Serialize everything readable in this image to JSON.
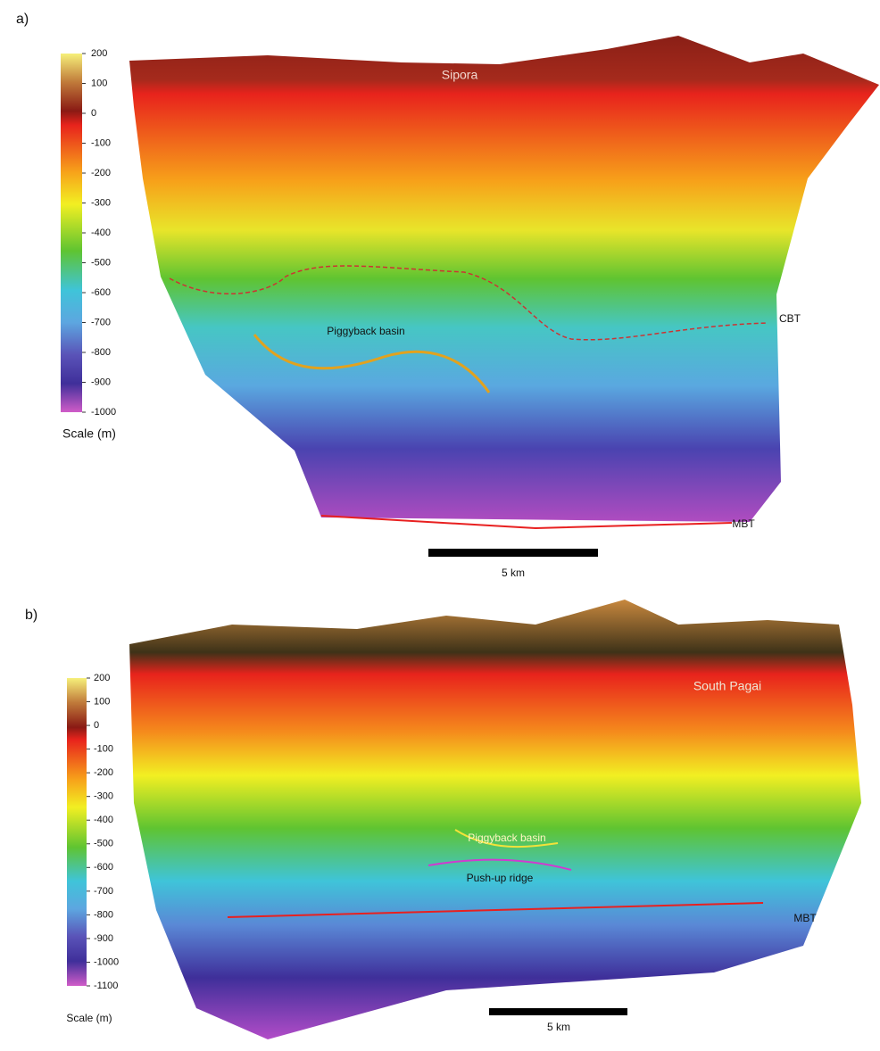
{
  "panels": [
    {
      "label": "a)",
      "place_label": "Sipora",
      "colorbar_ticks": [
        200,
        100,
        0,
        -100,
        -200,
        -300,
        -400,
        -500,
        -600,
        -700,
        -800,
        -900,
        -1000
      ],
      "colorbar_title": "Scale (m)",
      "annotations": [
        "Piggyback basin",
        "CBT",
        "MBT"
      ],
      "scale_bar": "5 km"
    },
    {
      "label": "b)",
      "place_label": "South Pagai",
      "colorbar_ticks": [
        200,
        100,
        0,
        -100,
        -200,
        -300,
        -400,
        -500,
        -600,
        -700,
        -800,
        -900,
        -1000,
        -1100
      ],
      "colorbar_title": "Scale (m)",
      "annotations": [
        "Piggyback basin",
        "Push-up ridge",
        "MBT"
      ],
      "scale_bar": "5 km"
    }
  ]
}
